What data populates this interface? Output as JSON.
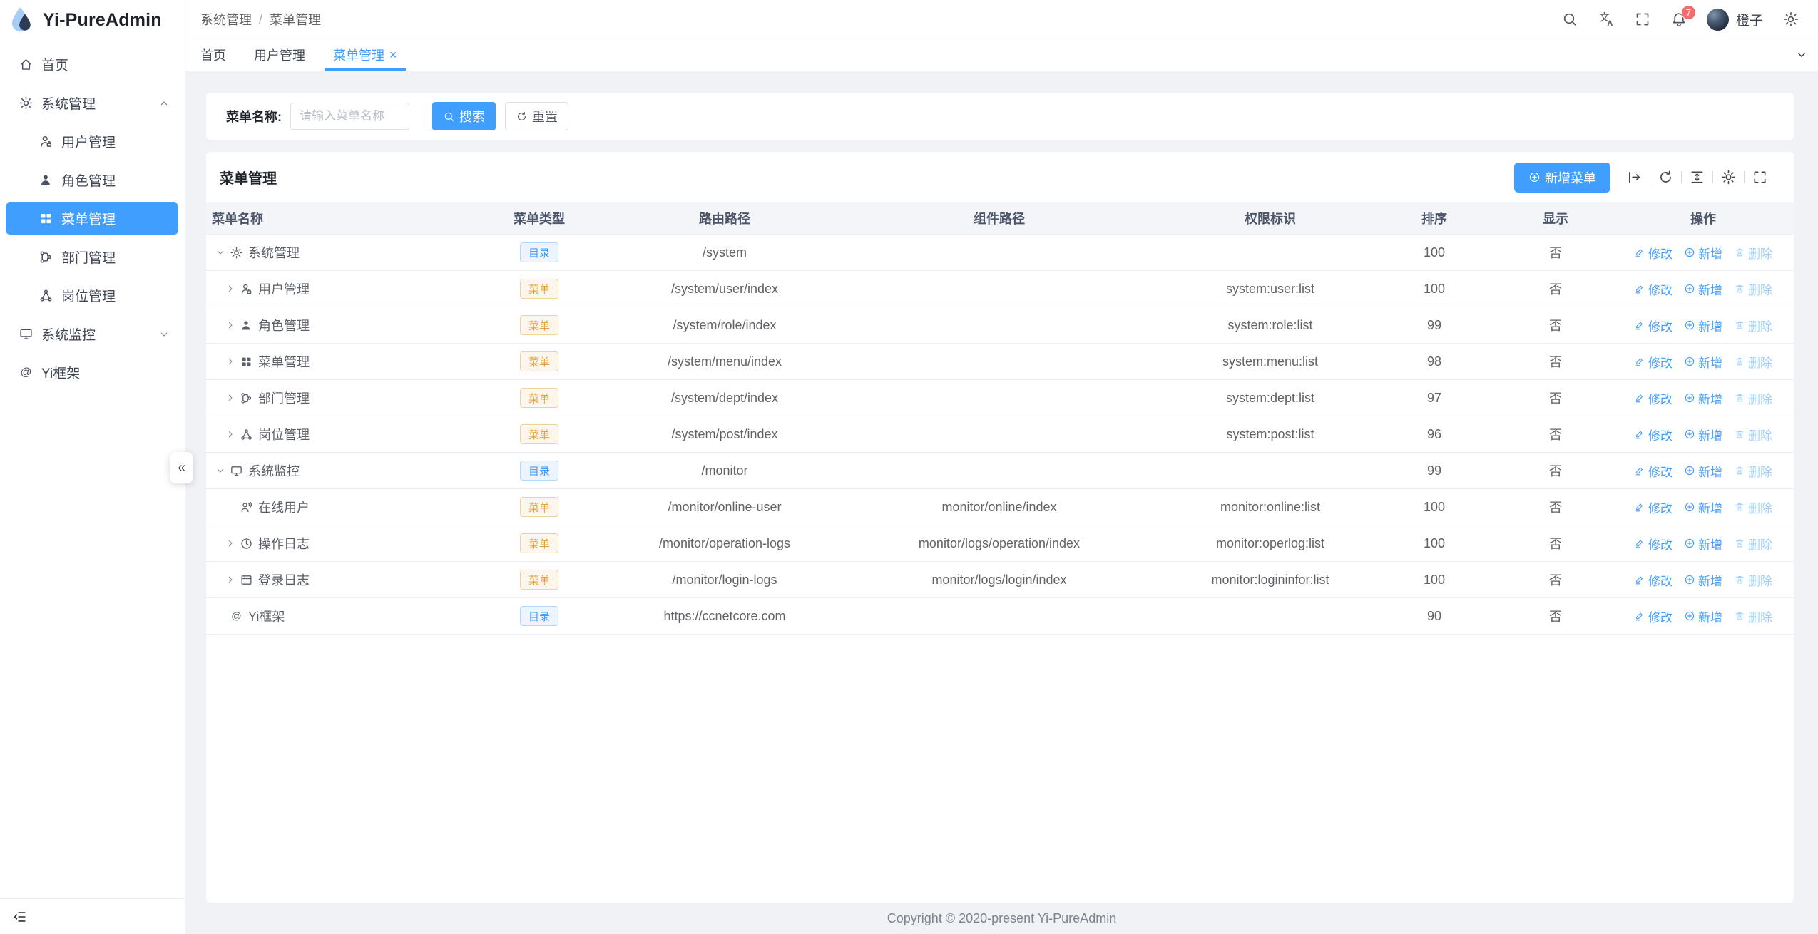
{
  "app": {
    "title": "Yi-PureAdmin"
  },
  "breadcrumb": {
    "items": [
      "系统管理",
      "菜单管理"
    ],
    "separator": "/"
  },
  "header": {
    "icons": [
      "search-icon",
      "translate-icon",
      "fullscreen-icon",
      "bell-icon",
      "gear-icon"
    ],
    "badge_count": "7",
    "user_name": "橙子"
  },
  "tabbar": {
    "tabs": [
      {
        "key": "home",
        "label": "首页",
        "active": false,
        "closable": false
      },
      {
        "key": "user",
        "label": "用户管理",
        "active": false,
        "closable": false
      },
      {
        "key": "menu",
        "label": "菜单管理",
        "active": true,
        "closable": true,
        "close_glyph": "×"
      }
    ]
  },
  "sidebar": {
    "items": [
      {
        "key": "home",
        "label": "首页",
        "icon": "home-icon",
        "level": 1,
        "arrow": ""
      },
      {
        "key": "system",
        "label": "系统管理",
        "icon": "gear-icon",
        "level": 1,
        "arrow": "up"
      },
      {
        "key": "user",
        "label": "用户管理",
        "icon": "user-icon",
        "level": 2,
        "arrow": ""
      },
      {
        "key": "role",
        "label": "角色管理",
        "icon": "role-icon",
        "level": 2,
        "arrow": ""
      },
      {
        "key": "menu",
        "label": "菜单管理",
        "icon": "menu-grid-icon",
        "level": 2,
        "arrow": "",
        "active": true
      },
      {
        "key": "dept",
        "label": "部门管理",
        "icon": "dept-icon",
        "level": 2,
        "arrow": ""
      },
      {
        "key": "post",
        "label": "岗位管理",
        "icon": "post-icon",
        "level": 2,
        "arrow": ""
      },
      {
        "key": "monitor",
        "label": "系统监控",
        "icon": "monitor-icon",
        "level": 1,
        "arrow": "down"
      },
      {
        "key": "yi",
        "label": "Yi框架",
        "icon": "at-icon",
        "level": 1,
        "arrow": ""
      }
    ]
  },
  "search": {
    "label": "菜单名称:",
    "placeholder": "请输入菜单名称",
    "search_label": "搜索",
    "reset_label": "重置"
  },
  "card": {
    "title": "菜单管理",
    "add_button": "新增菜单",
    "toolbar": [
      "arrow-to-right-icon",
      "refresh-icon",
      "line-height-icon",
      "gear-icon",
      "fullscreen-icon"
    ]
  },
  "table": {
    "columns": [
      "菜单名称",
      "菜单类型",
      "路由路径",
      "组件路径",
      "权限标识",
      "排序",
      "显示",
      "操作"
    ],
    "actions": [
      {
        "key": "edit",
        "label": "修改",
        "icon": "edit-icon"
      },
      {
        "key": "add",
        "label": "新增",
        "icon": "plus-circle-icon"
      },
      {
        "key": "delete",
        "label": "删除",
        "icon": "delete-icon",
        "muted": true
      }
    ],
    "rows": [
      {
        "key": "system",
        "name": "系统管理",
        "icon": "gear-icon",
        "arrow": "down",
        "level": 1,
        "type": "目录",
        "variant": "primary",
        "route": "/system",
        "component": "",
        "permission": "",
        "sort": "100",
        "visible": "否"
      },
      {
        "key": "user",
        "name": "用户管理",
        "icon": "user-icon",
        "arrow": "right",
        "level": 2,
        "type": "菜单",
        "variant": "warning",
        "route": "/system/user/index",
        "component": "",
        "permission": "system:user:list",
        "sort": "100",
        "visible": "否"
      },
      {
        "key": "role",
        "name": "角色管理",
        "icon": "role-icon",
        "arrow": "right",
        "level": 2,
        "type": "菜单",
        "variant": "warning",
        "route": "/system/role/index",
        "component": "",
        "permission": "system:role:list",
        "sort": "99",
        "visible": "否"
      },
      {
        "key": "menu",
        "name": "菜单管理",
        "icon": "menu-grid-icon",
        "arrow": "right",
        "level": 2,
        "type": "菜单",
        "variant": "warning",
        "route": "/system/menu/index",
        "component": "",
        "permission": "system:menu:list",
        "sort": "98",
        "visible": "否"
      },
      {
        "key": "dept",
        "name": "部门管理",
        "icon": "dept-icon",
        "arrow": "right",
        "level": 2,
        "type": "菜单",
        "variant": "warning",
        "route": "/system/dept/index",
        "component": "",
        "permission": "system:dept:list",
        "sort": "97",
        "visible": "否"
      },
      {
        "key": "post",
        "name": "岗位管理",
        "icon": "post-icon",
        "arrow": "right",
        "level": 2,
        "type": "菜单",
        "variant": "warning",
        "route": "/system/post/index",
        "component": "",
        "permission": "system:post:list",
        "sort": "96",
        "visible": "否"
      },
      {
        "key": "monitor",
        "name": "系统监控",
        "icon": "monitor-icon",
        "arrow": "down",
        "level": 1,
        "type": "目录",
        "variant": "primary",
        "route": "/monitor",
        "component": "",
        "permission": "",
        "sort": "99",
        "visible": "否"
      },
      {
        "key": "online-user",
        "name": "在线用户",
        "icon": "online-user-icon",
        "arrow": "none",
        "level": 2,
        "type": "菜单",
        "variant": "warning",
        "route": "/monitor/online-user",
        "component": "monitor/online/index",
        "permission": "monitor:online:list",
        "sort": "100",
        "visible": "否"
      },
      {
        "key": "operation-log",
        "name": "操作日志",
        "icon": "clock-icon",
        "arrow": "right",
        "level": 2,
        "type": "菜单",
        "variant": "warning",
        "route": "/monitor/operation-logs",
        "component": "monitor/logs/operation/index",
        "permission": "monitor:operlog:list",
        "sort": "100",
        "visible": "否"
      },
      {
        "key": "login-log",
        "name": "登录日志",
        "icon": "journal-icon",
        "arrow": "right",
        "level": 2,
        "type": "菜单",
        "variant": "warning",
        "route": "/monitor/login-logs",
        "component": "monitor/logs/login/index",
        "permission": "monitor:logininfor:list",
        "sort": "100",
        "visible": "否"
      },
      {
        "key": "yi",
        "name": "Yi框架",
        "icon": "at-icon",
        "arrow": "none",
        "level": 1,
        "type": "目录",
        "variant": "primary",
        "route": "https://ccnetcore.com",
        "component": "",
        "permission": "",
        "sort": "90",
        "visible": "否"
      }
    ]
  },
  "footer": {
    "text": "Copyright © 2020-present Yi-PureAdmin"
  },
  "colors": {
    "primary": "#409eff",
    "warning": "#e6a23c",
    "danger": "#f56c6c",
    "link_muted": "#a0cfff"
  }
}
